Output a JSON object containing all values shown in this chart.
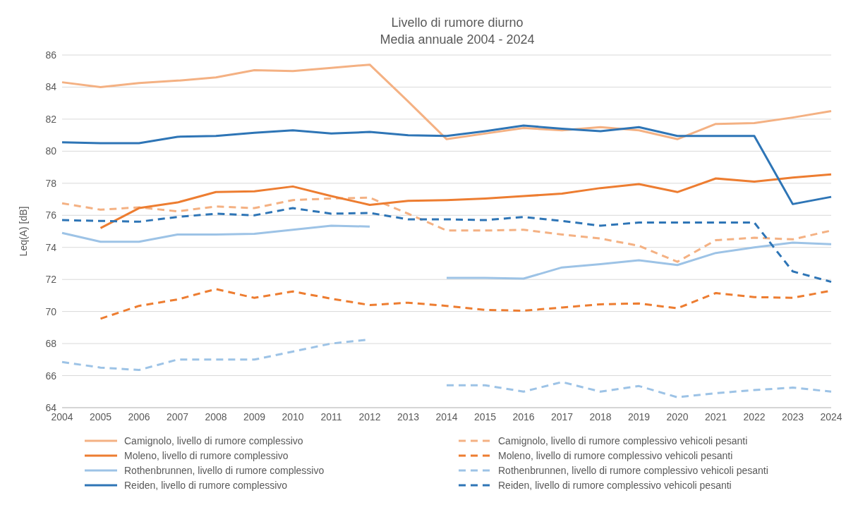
{
  "chart_data": {
    "type": "line",
    "title": "Livello di rumore diurno",
    "subtitle": "Media annuale 2004 - 2024",
    "ylabel": "Leq(A) [dB]",
    "categories": [
      "2004",
      "2005",
      "2006",
      "2007",
      "2008",
      "2009",
      "2010",
      "2011",
      "2012",
      "2013",
      "2014",
      "2015",
      "2016",
      "2017",
      "2018",
      "2019",
      "2020",
      "2021",
      "2022",
      "2023",
      "2024"
    ],
    "ylim": [
      64,
      86
    ],
    "yticks": [
      64,
      66,
      68,
      70,
      72,
      74,
      76,
      78,
      80,
      82,
      84,
      86
    ],
    "grid": "y",
    "legend": "bottom",
    "marker": "none",
    "series": [
      {
        "name": "Camignolo, livello di rumore complessivo",
        "color": "#f4b183",
        "line_style": "solid",
        "values": [
          84.3,
          84.0,
          84.25,
          84.4,
          84.6,
          85.05,
          85.0,
          85.2,
          85.4,
          83.1,
          80.75,
          81.1,
          81.45,
          81.3,
          81.5,
          81.3,
          80.75,
          81.7,
          81.75,
          82.1,
          82.5
        ]
      },
      {
        "name": "Camignolo, livello di rumore complessivo vehicoli pesanti",
        "color": "#f4b183",
        "line_style": "dashed",
        "values": [
          76.75,
          76.35,
          76.5,
          76.25,
          76.55,
          76.45,
          76.95,
          77.05,
          77.1,
          76.1,
          75.05,
          75.05,
          75.1,
          74.8,
          74.55,
          74.1,
          73.1,
          74.45,
          74.6,
          74.5,
          75.05
        ]
      },
      {
        "name": "Moleno, livello di rumore complessivo",
        "color": "#ed7d31",
        "line_style": "solid",
        "values": [
          null,
          75.2,
          76.45,
          76.8,
          77.45,
          77.5,
          77.8,
          77.2,
          76.65,
          76.9,
          76.95,
          77.05,
          77.2,
          77.35,
          77.7,
          77.95,
          77.45,
          78.3,
          78.1,
          78.35,
          78.55
        ]
      },
      {
        "name": "Moleno, livello di rumore complessivo vehicoli pesanti",
        "color": "#ed7d31",
        "line_style": "dashed",
        "values": [
          null,
          69.55,
          70.35,
          70.75,
          71.4,
          70.85,
          71.25,
          70.8,
          70.4,
          70.55,
          70.35,
          70.1,
          70.05,
          70.25,
          70.45,
          70.5,
          70.2,
          71.15,
          70.9,
          70.85,
          71.3
        ]
      },
      {
        "name": "Rothenbrunnen, livello di rumore complessivo",
        "color": "#9dc3e6",
        "line_style": "solid",
        "values": [
          74.9,
          74.35,
          74.35,
          74.8,
          74.8,
          74.85,
          75.1,
          75.35,
          75.3,
          null,
          72.1,
          72.1,
          72.05,
          72.75,
          72.95,
          73.2,
          72.9,
          73.65,
          74.0,
          74.3,
          74.2
        ]
      },
      {
        "name": "Rothenbrunnen, livello di rumore complessivo vehicoli pesanti",
        "color": "#9dc3e6",
        "line_style": "dashed",
        "values": [
          66.85,
          66.5,
          66.35,
          67.0,
          67.0,
          67.0,
          67.5,
          68.0,
          68.25,
          null,
          65.4,
          65.4,
          65.0,
          65.6,
          65.0,
          65.35,
          64.65,
          64.9,
          65.1,
          65.25,
          65.0
        ]
      },
      {
        "name": "Reiden, livello di rumore complessivo",
        "color": "#2e75b6",
        "line_style": "solid",
        "values": [
          80.55,
          80.5,
          80.5,
          80.9,
          80.95,
          81.15,
          81.3,
          81.1,
          81.2,
          81.0,
          80.95,
          81.25,
          81.6,
          81.4,
          81.25,
          81.5,
          80.95,
          80.95,
          80.95,
          76.7,
          77.15
        ]
      },
      {
        "name": "Reiden, livello di rumore complessivo vehicoli pesanti",
        "color": "#2e75b6",
        "line_style": "dashed",
        "values": [
          75.7,
          75.65,
          75.6,
          75.9,
          76.1,
          76.0,
          76.45,
          76.1,
          76.15,
          75.75,
          75.75,
          75.7,
          75.9,
          75.65,
          75.35,
          75.55,
          75.55,
          75.55,
          75.55,
          72.5,
          71.85
        ]
      }
    ]
  }
}
